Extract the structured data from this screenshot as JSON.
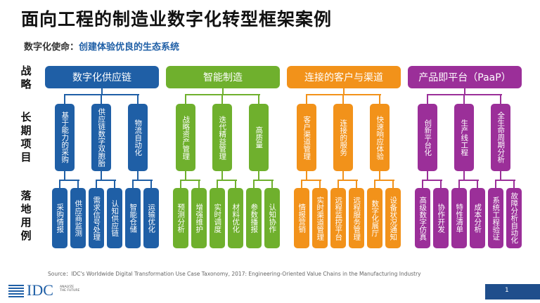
{
  "title": "面向工程的制造业数字化转型框架案例",
  "mission": {
    "label": "数字化使命：",
    "value": "创建体验优良的生态系统"
  },
  "row_labels": [
    "战略",
    "长期项目",
    "落地用例"
  ],
  "colors": {
    "blue": "#1f5fa6",
    "green": "#6fb02d",
    "orange": "#f2921a",
    "purple": "#9b2f99",
    "footer": "#1f4e8c"
  },
  "groups": [
    {
      "name": "数字化供应链",
      "projects": [
        {
          "label": "基于能力的采购",
          "cases": [
            "采购情报",
            "供应商监测"
          ]
        },
        {
          "label": "供应链数字双胞胎",
          "cases": [
            "需求信号处理",
            "认知供应链"
          ]
        },
        {
          "label": "物流自动化",
          "cases": [
            "智能仓储",
            "运输优化"
          ]
        }
      ]
    },
    {
      "name": "智能制造",
      "projects": [
        {
          "label": "战略资产管理",
          "cases": [
            "预测分析",
            "增强维护"
          ]
        },
        {
          "label": "迭代精益管理",
          "cases": [
            "实时调度",
            "材料优化"
          ]
        },
        {
          "label": "高质量",
          "cases": [
            "参数播报",
            "认知协作"
          ]
        }
      ]
    },
    {
      "name": "连接的客户与渠道",
      "projects": [
        {
          "label": "客户渠道管理",
          "cases": [
            "情报营销",
            "实时渠道管理"
          ]
        },
        {
          "label": "连接的服务",
          "cases": [
            "远程监控平台",
            "远程服务管理"
          ]
        },
        {
          "label": "快速响应体验",
          "cases": [
            "数字化展厅",
            "设备状况通知"
          ]
        }
      ]
    },
    {
      "name": "产品即平台（PaaP）",
      "projects": [
        {
          "label": "创新平台化",
          "cases": [
            "高级数字仿真",
            "协作开发"
          ]
        },
        {
          "label": "生产线工程",
          "cases": [
            "特性清单",
            "成本分析"
          ]
        },
        {
          "label": "全生命周期分析",
          "cases": [
            "系统工程验证",
            "故障分析自动化"
          ]
        }
      ]
    }
  ],
  "source": "Source：IDC's Worldwide Digital Transformation Use Case Taxonomy, 2017: Engineering-Oriented Value Chains in the Manufacturing Industry",
  "logo": {
    "text": "IDC",
    "tagline": "ANALYZE THE FUTURE"
  },
  "page_number": "1"
}
